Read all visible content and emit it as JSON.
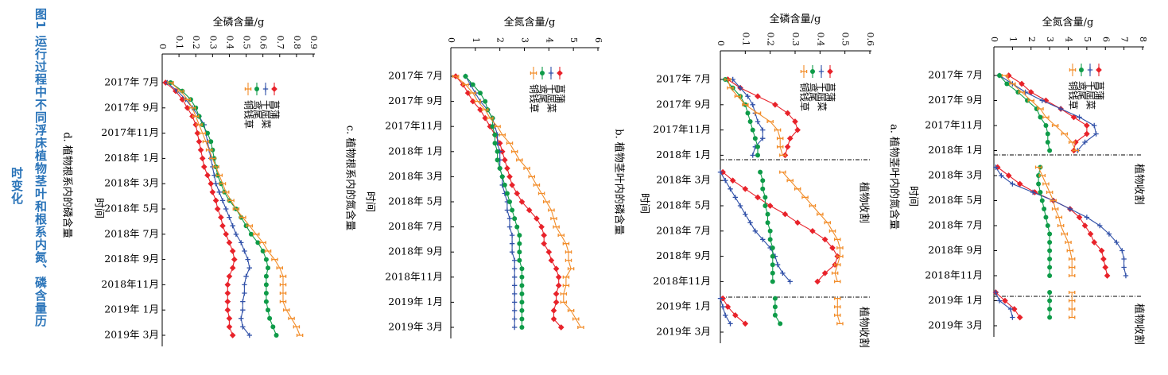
{
  "figure": {
    "title": "图1 运行过程中不同浮床植物茎叶和根系内氮、磷含量历",
    "title_cont": "时变化"
  },
  "series_styles": [
    {
      "name": "菖蒲",
      "color": "#e8222a",
      "marker": "diamond"
    },
    {
      "name": "千屈菜",
      "color": "#3050a8",
      "marker": "plus"
    },
    {
      "name": "鸢尾",
      "color": "#0e9b48",
      "marker": "circle"
    },
    {
      "name": "铜钱草",
      "color": "#f28c28",
      "marker": "dash"
    }
  ],
  "time_labels": [
    "2017年 7月",
    "2017年 9月",
    "2017年11月",
    "2018年 1月",
    "2018年 3月",
    "2018年 5月",
    "2018年 7月",
    "2018年 9月",
    "2018年11月",
    "2019年 1月",
    "2019年 3月"
  ],
  "time_axis_label": "时间",
  "harvest_label": "植物收割",
  "chart_data": [
    {
      "id": "a",
      "type": "line",
      "caption": "a. 植物茎叶内的氮含量",
      "ylabel": "全氮含量/g",
      "ticks": [
        0,
        1,
        2,
        3,
        4,
        5,
        6,
        7,
        8
      ],
      "ylim": [
        0,
        8
      ],
      "harvest": true,
      "series": [
        {
          "name": "菖蒲",
          "values": [
            0.8,
            1.5,
            2.0,
            2.8,
            3.6,
            4.3,
            5.0,
            5.0,
            4.4,
            4.3,
            null,
            0.2,
            0.8,
            1.4,
            2.2,
            3.2,
            4.1,
            4.6,
            4.9,
            5.2,
            5.4,
            5.8,
            5.9,
            6.0,
            6.1,
            null,
            0.1,
            0.6,
            1.1,
            1.4
          ]
        },
        {
          "name": "千屈菜",
          "values": [
            0.3,
            1.0,
            1.7,
            2.6,
            3.6,
            4.6,
            5.4,
            5.5,
            4.9,
            4.5,
            null,
            0.1,
            0.4,
            1.0,
            2.1,
            3.2,
            4.1,
            5.0,
            5.7,
            6.2,
            6.6,
            6.9,
            7.0,
            7.0,
            7.1,
            null,
            0.1,
            0.3,
            0.9,
            1.0
          ]
        },
        {
          "name": "鸢尾",
          "values": [
            0.3,
            0.7,
            1.3,
            1.8,
            2.3,
            2.5,
            2.8,
            2.9,
            2.9,
            3.0,
            null,
            2.5,
            2.4,
            2.4,
            2.5,
            2.6,
            2.7,
            2.8,
            2.9,
            3.0,
            3.0,
            3.0,
            3.0,
            3.0,
            3.0,
            null,
            3.0,
            3.0,
            3.0,
            3.0
          ]
        },
        {
          "name": "铜钱草",
          "values": [
            0.6,
            1.0,
            1.5,
            2.0,
            2.5,
            2.8,
            3.3,
            3.8,
            4.2,
            4.4,
            null,
            2.4,
            2.6,
            2.8,
            3.0,
            3.2,
            3.3,
            3.5,
            3.6,
            3.8,
            4.0,
            4.1,
            4.2,
            4.2,
            4.2,
            null,
            4.2,
            4.2,
            4.2,
            4.2
          ]
        }
      ]
    },
    {
      "id": "b",
      "type": "line",
      "caption": "b. 植物茎叶内的磷含量",
      "ylabel": "全磷含量/g",
      "ticks": [
        0,
        0.1,
        0.2,
        0.3,
        0.4,
        0.5,
        0.6
      ],
      "ylim": [
        0,
        0.6
      ],
      "harvest": true,
      "series": [
        {
          "name": "菖蒲",
          "values": [
            0.03,
            0.08,
            0.15,
            0.22,
            0.27,
            0.3,
            0.31,
            0.28,
            0.27,
            0.26,
            null,
            0.01,
            0.05,
            0.1,
            0.15,
            0.2,
            0.26,
            0.31,
            0.37,
            0.42,
            0.45,
            0.47,
            0.46,
            0.42,
            0.39,
            null,
            0.01,
            0.03,
            0.06,
            0.1
          ]
        },
        {
          "name": "千屈菜",
          "values": [
            0.05,
            0.08,
            0.11,
            0.13,
            0.14,
            0.15,
            0.17,
            0.17,
            0.14,
            0.13,
            null,
            0.0,
            0.02,
            0.04,
            0.06,
            0.08,
            0.1,
            0.12,
            0.14,
            0.17,
            0.2,
            0.22,
            0.23,
            0.25,
            0.28,
            null,
            0.0,
            0.01,
            0.02,
            0.04
          ]
        },
        {
          "name": "鸢尾",
          "values": [
            0.02,
            0.05,
            0.08,
            0.1,
            0.11,
            0.12,
            0.13,
            0.14,
            0.15,
            0.15,
            null,
            0.16,
            0.17,
            0.17,
            0.18,
            0.18,
            0.19,
            0.19,
            0.2,
            0.2,
            0.21,
            0.21,
            0.21,
            0.21,
            0.21,
            null,
            0.22,
            0.22,
            0.22,
            0.24
          ]
        },
        {
          "name": "铜钱草",
          "values": [
            0.03,
            0.04,
            0.07,
            0.1,
            0.15,
            0.2,
            0.23,
            0.24,
            0.24,
            0.25,
            null,
            0.25,
            0.28,
            0.31,
            0.34,
            0.37,
            0.4,
            0.43,
            0.45,
            0.47,
            0.48,
            0.48,
            0.47,
            0.46,
            0.47,
            null,
            0.47,
            0.47,
            0.47,
            0.48
          ]
        }
      ]
    },
    {
      "id": "c",
      "type": "line",
      "caption": "c. 植物根系内的氮含量",
      "ylabel": "全氮含量/g",
      "ticks": [
        0,
        1,
        2,
        3,
        4,
        5,
        6
      ],
      "ylim": [
        0,
        6
      ],
      "harvest": false,
      "series": [
        {
          "name": "菖蒲",
          "values": [
            0.2,
            0.5,
            0.7,
            0.9,
            1.2,
            1.4,
            1.6,
            1.8,
            2.0,
            2.1,
            2.2,
            2.3,
            2.4,
            2.5,
            2.7,
            2.9,
            3.2,
            3.5,
            3.7,
            3.8,
            3.8,
            4.0,
            4.1,
            4.3,
            4.4,
            4.4,
            4.3,
            4.3,
            4.2,
            4.2,
            4.5
          ]
        },
        {
          "name": "千屈菜",
          "values": [
            0.6,
            0.8,
            1.0,
            1.2,
            1.5,
            1.7,
            1.8,
            1.9,
            1.9,
            2.0,
            2.0,
            2.0,
            2.1,
            2.1,
            2.2,
            2.3,
            2.3,
            2.4,
            2.4,
            2.5,
            2.5,
            2.5,
            2.6,
            2.6,
            2.6,
            2.6,
            2.6,
            2.6,
            2.6,
            2.6,
            2.6
          ]
        },
        {
          "name": "鸢尾",
          "values": [
            0.6,
            0.9,
            1.2,
            1.4,
            1.5,
            1.7,
            1.7,
            1.8,
            1.8,
            1.9,
            1.9,
            2.0,
            2.1,
            2.2,
            2.3,
            2.4,
            2.5,
            2.6,
            2.7,
            2.8,
            2.8,
            2.8,
            2.8,
            2.9,
            2.9,
            2.9,
            2.9,
            2.9,
            2.9,
            2.9,
            2.9
          ]
        },
        {
          "name": "铜钱草",
          "values": [
            0.2,
            0.6,
            0.9,
            1.1,
            1.4,
            1.6,
            1.9,
            2.1,
            2.4,
            2.6,
            2.8,
            3.1,
            3.3,
            3.5,
            3.7,
            3.9,
            4.1,
            4.2,
            4.3,
            4.5,
            4.7,
            4.8,
            4.8,
            4.9,
            4.7,
            4.7,
            4.6,
            4.6,
            4.9,
            5.1,
            5.3
          ]
        }
      ]
    },
    {
      "id": "d",
      "type": "line",
      "caption": "d. 植物根系内的磷含量",
      "ylabel": "全磷含量/g",
      "ticks": [
        0,
        0.1,
        0.2,
        0.3,
        0.4,
        0.5,
        0.6,
        0.7,
        0.8,
        0.9
      ],
      "ylim": [
        0,
        0.9
      ],
      "harvest": false,
      "series": [
        {
          "name": "菖蒲",
          "values": [
            0.02,
            0.08,
            0.12,
            0.15,
            0.18,
            0.2,
            0.21,
            0.22,
            0.23,
            0.24,
            0.25,
            0.27,
            0.29,
            0.3,
            0.32,
            0.33,
            0.35,
            0.36,
            0.38,
            0.4,
            0.42,
            0.43,
            0.42,
            0.4,
            0.39,
            0.39,
            0.39,
            0.39,
            0.4,
            0.4,
            0.42
          ]
        },
        {
          "name": "千屈菜",
          "values": [
            0.03,
            0.09,
            0.14,
            0.18,
            0.22,
            0.25,
            0.26,
            0.27,
            0.28,
            0.29,
            0.3,
            0.31,
            0.32,
            0.34,
            0.36,
            0.38,
            0.4,
            0.42,
            0.44,
            0.47,
            0.49,
            0.51,
            0.52,
            0.5,
            0.49,
            0.49,
            0.48,
            0.48,
            0.47,
            0.48,
            0.52
          ]
        },
        {
          "name": "鸢尾",
          "values": [
            0.05,
            0.12,
            0.17,
            0.2,
            0.22,
            0.24,
            0.27,
            0.29,
            0.3,
            0.31,
            0.32,
            0.33,
            0.35,
            0.37,
            0.4,
            0.44,
            0.47,
            0.5,
            0.53,
            0.57,
            0.6,
            0.62,
            0.63,
            0.62,
            0.62,
            0.62,
            0.62,
            0.63,
            0.64,
            0.66,
            0.68
          ]
        },
        {
          "name": "铜钱草",
          "values": [
            0.05,
            0.11,
            0.15,
            0.18,
            0.2,
            0.22,
            0.24,
            0.26,
            0.28,
            0.3,
            0.32,
            0.34,
            0.36,
            0.38,
            0.41,
            0.44,
            0.48,
            0.52,
            0.56,
            0.6,
            0.63,
            0.67,
            0.7,
            0.72,
            0.72,
            0.72,
            0.72,
            0.74,
            0.77,
            0.8,
            0.82
          ]
        }
      ]
    }
  ]
}
